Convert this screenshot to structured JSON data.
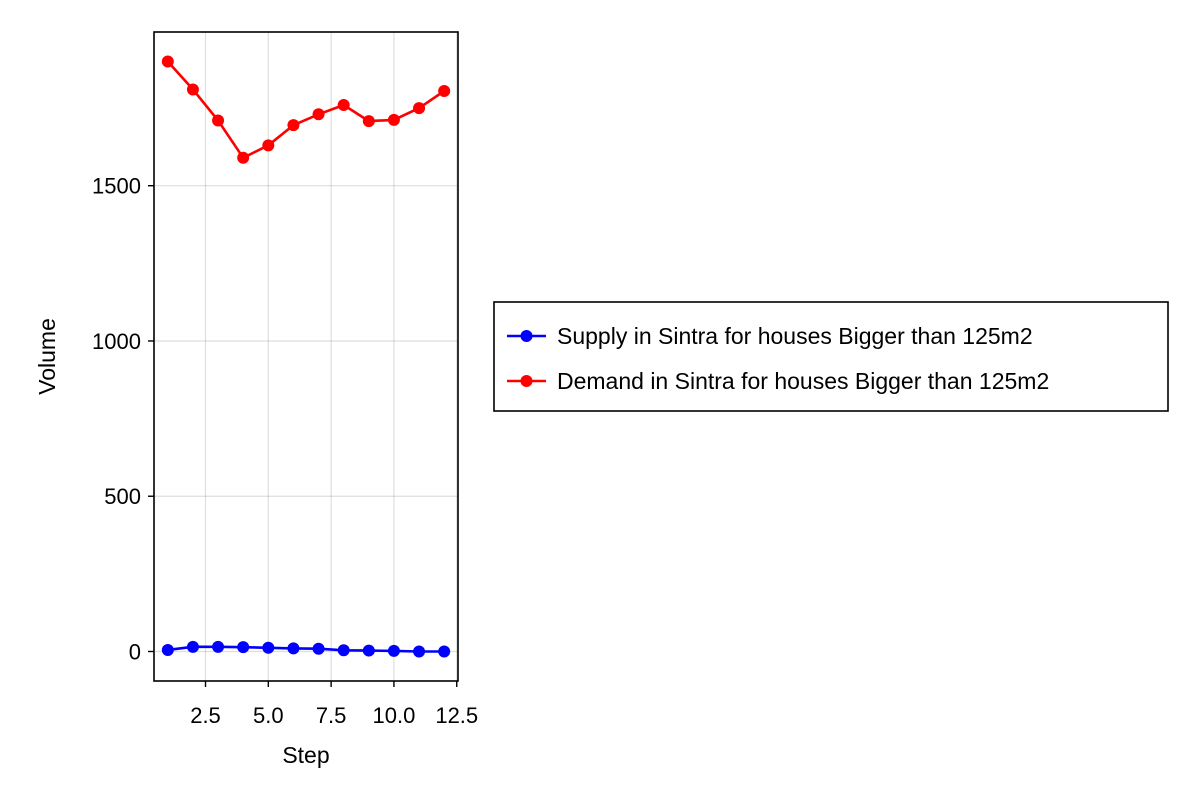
{
  "chart_data": {
    "type": "line",
    "title": "",
    "xlabel": "Step",
    "ylabel": "Volume",
    "xlim": [
      0.45,
      12.55
    ],
    "ylim": [
      -95,
      1995
    ],
    "x_ticks": [
      2.5,
      5.0,
      7.5,
      10.0,
      12.5
    ],
    "x_tick_labels": [
      "2.5",
      "5.0",
      "7.5",
      "10.0",
      "12.5"
    ],
    "y_ticks": [
      0,
      500,
      1000,
      1500
    ],
    "y_tick_labels": [
      "0",
      "500",
      "1000",
      "1500"
    ],
    "grid": true,
    "legend_position": "right",
    "series": [
      {
        "name": "Supply in Sintra for houses Bigger than 125m2",
        "color": "#0000ff",
        "marker": "circle",
        "x": [
          1,
          2,
          3,
          4,
          5,
          6,
          7,
          8,
          9,
          10,
          11,
          12
        ],
        "y": [
          5,
          15,
          15,
          14,
          12,
          10,
          9,
          4,
          3,
          2,
          0,
          0
        ]
      },
      {
        "name": "Demand in Sintra for houses Bigger than 125m2",
        "color": "#ff0000",
        "marker": "circle",
        "x": [
          1,
          2,
          3,
          4,
          5,
          6,
          7,
          8,
          9,
          10,
          11,
          12
        ],
        "y": [
          1900,
          1810,
          1710,
          1590,
          1630,
          1695,
          1730,
          1760,
          1708,
          1712,
          1750,
          1805
        ]
      }
    ]
  }
}
